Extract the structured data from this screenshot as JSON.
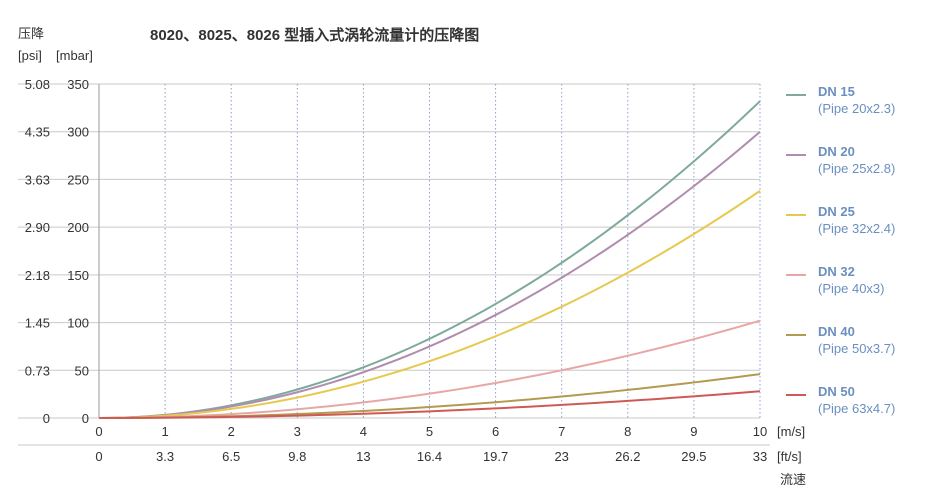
{
  "chart_data": {
    "type": "line",
    "title": "8020、8025、8026 型插入式涡轮流量计的压降图",
    "ylabel": "压降",
    "yunit_psi": "[psi]",
    "yunit_mbar": "[mbar]",
    "xlabel": "流速",
    "xunit_ms": "[m/s]",
    "xunit_fts": "[ft/s]",
    "x_ticks_ms": [
      "0",
      "1",
      "2",
      "3",
      "4",
      "5",
      "6",
      "7",
      "8",
      "9",
      "10"
    ],
    "x_ticks_fts": [
      "0",
      "3.3",
      "6.5",
      "9.8",
      "13",
      "16.4",
      "19.7",
      "23",
      "26.2",
      "29.5",
      "33"
    ],
    "y_ticks_mbar": [
      "0",
      "50",
      "100",
      "150",
      "200",
      "250",
      "300",
      "350"
    ],
    "y_ticks_psi": [
      "0",
      "0.73",
      "1.45",
      "2.18",
      "2.90",
      "3.63",
      "4.35",
      "5.08"
    ],
    "xlim": [
      0,
      10
    ],
    "ylim": [
      0,
      350
    ],
    "grid": "vertical dotted",
    "legend_position": "right",
    "series": [
      {
        "name": "DN 15",
        "pipe": "(Pipe 20x2.3)",
        "color": "#7fa99a",
        "end_value": 332
      },
      {
        "name": "DN 20",
        "pipe": "(Pipe 25x2.8)",
        "color": "#b08cae",
        "end_value": 300
      },
      {
        "name": "DN 25",
        "pipe": "(Pipe 32x2.4)",
        "color": "#e6c94e",
        "end_value": 238
      },
      {
        "name": "DN 32",
        "pipe": "(Pipe 40x3)",
        "color": "#e8a7a7",
        "end_value": 102
      },
      {
        "name": "DN 40",
        "pipe": "(Pipe 50x3.7)",
        "color": "#b39a4e",
        "end_value": 46
      },
      {
        "name": "DN 50",
        "pipe": "(Pipe 63x4.7)",
        "color": "#cf5a55",
        "end_value": 28
      }
    ]
  }
}
